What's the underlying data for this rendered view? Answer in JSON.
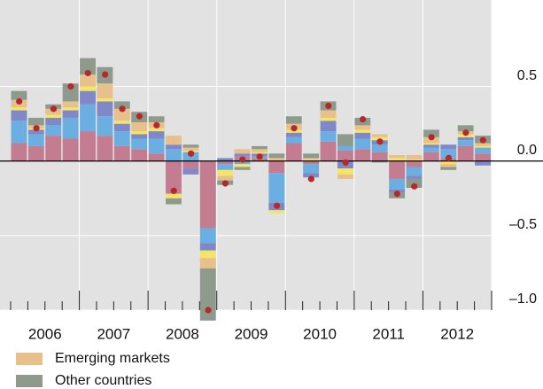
{
  "chart_data": {
    "type": "bar",
    "categories": [
      null,
      null,
      null,
      null,
      null,
      null,
      null,
      null,
      null,
      null,
      null,
      null,
      null,
      null,
      null,
      null,
      null,
      null,
      null,
      null,
      null,
      null,
      null,
      null,
      null,
      null,
      null,
      null
    ],
    "year_labels": [
      "2006",
      "2007",
      "2008",
      "2009",
      "2010",
      "2011",
      "2012"
    ],
    "series": [
      {
        "color": "#c47c90",
        "values": [
          0.12,
          0.1,
          0.17,
          0.15,
          0.2,
          0.17,
          0.1,
          0.08,
          0.05,
          -0.22,
          -0.05,
          -0.45,
          -0.02,
          0.03,
          0.02,
          -0.08,
          0.12,
          -0.02,
          0.13,
          0.07,
          0.08,
          0.06,
          -0.12,
          -0.04,
          0.06,
          0.02,
          0.1,
          0.05
        ]
      },
      {
        "color": "#6aaee2",
        "values": [
          0.15,
          0.08,
          0.07,
          0.14,
          0.18,
          0.13,
          0.1,
          0.07,
          0.1,
          0.08,
          0.06,
          -0.1,
          -0.04,
          -0.02,
          0.01,
          -0.2,
          0.04,
          -0.06,
          0.07,
          0.03,
          0.07,
          0.05,
          -0.07,
          -0.06,
          0.03,
          0.06,
          0.04,
          0.04
        ]
      },
      {
        "color": "#8088c8",
        "values": [
          0.07,
          0.03,
          0.05,
          0.05,
          0.09,
          0.1,
          0.05,
          0.03,
          0.05,
          0.03,
          -0.04,
          -0.05,
          0.02,
          0.02,
          0.02,
          -0.05,
          0.03,
          -0.03,
          0.07,
          -0.05,
          0.04,
          0.03,
          -0.02,
          -0.02,
          0.02,
          0.03,
          0.02,
          -0.03
        ]
      },
      {
        "color": "#f4e664",
        "values": [
          0.02,
          0.01,
          0.02,
          0.02,
          0.03,
          0.02,
          0.02,
          0.02,
          0.02,
          -0.03,
          0.01,
          -0.05,
          -0.04,
          -0.02,
          0.01,
          -0.02,
          0.02,
          0.01,
          0.02,
          -0.04,
          0.02,
          0.02,
          0.02,
          0.01,
          0.01,
          -0.02,
          0.02,
          0.01
        ]
      },
      {
        "name": "Emerging markets",
        "color": "#e7c08c",
        "values": [
          0.05,
          0.02,
          0.04,
          0.04,
          0.08,
          0.1,
          0.08,
          0.06,
          0.04,
          0.06,
          0.02,
          -0.07,
          -0.03,
          0.03,
          0.02,
          0.02,
          0.04,
          0.01,
          0.05,
          -0.03,
          0.03,
          0.02,
          0.02,
          0.03,
          0.04,
          -0.02,
          0.02,
          0.02
        ]
      },
      {
        "name": "Other countries",
        "color": "#8d9a8c",
        "values": [
          0.06,
          0.05,
          0.03,
          0.12,
          0.11,
          0.11,
          0.05,
          0.07,
          0.04,
          -0.04,
          0.02,
          -0.35,
          -0.03,
          -0.02,
          0.02,
          0.03,
          0.05,
          0.03,
          0.06,
          0.08,
          0.05,
          -0.01,
          -0.04,
          -0.06,
          0.05,
          -0.02,
          0.04,
          0.05
        ]
      }
    ],
    "totals": {
      "color": "#b5292a",
      "values": [
        0.4,
        0.22,
        0.35,
        0.5,
        0.59,
        0.58,
        0.35,
        0.3,
        0.24,
        -0.2,
        0.05,
        -1.0,
        -0.15,
        0.01,
        0.03,
        -0.3,
        0.22,
        -0.12,
        0.37,
        -0.01,
        0.28,
        0.13,
        -0.22,
        -0.17,
        0.16,
        0.02,
        0.19,
        0.14
      ]
    },
    "ylim": [
      -1.0,
      1.08
    ],
    "yticks": [
      0.5,
      {
        "value": 0,
        "label": "0.0"
      },
      {
        "value": -0.5,
        "label": "–0.5"
      },
      {
        "value": -1,
        "label": "–1.0"
      }
    ],
    "grid": true
  }
}
